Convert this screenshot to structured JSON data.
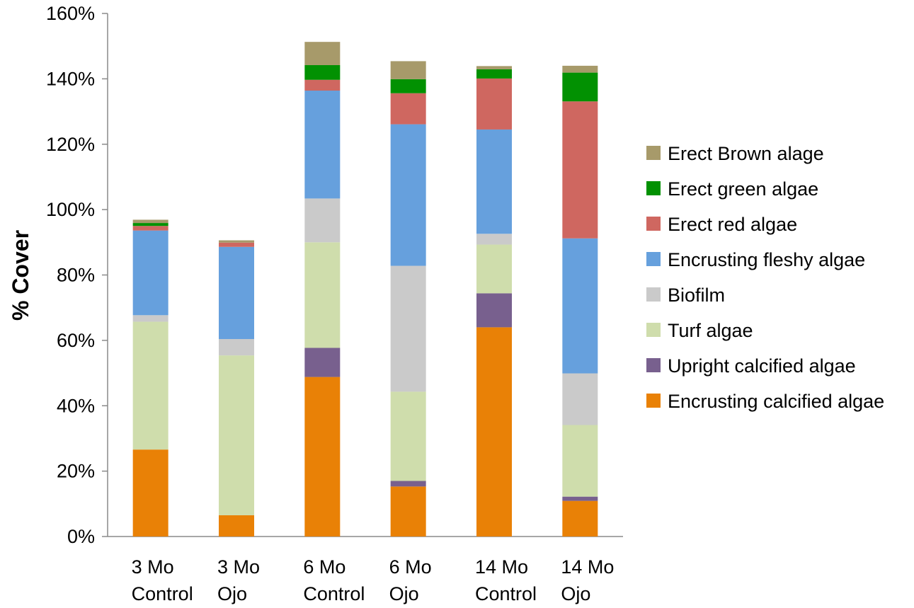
{
  "chart_data": {
    "type": "bar",
    "stacked": true,
    "ylabel": "% Cover",
    "ylim": [
      0,
      160
    ],
    "yticks": [
      "0%",
      "20%",
      "40%",
      "60%",
      "80%",
      "100%",
      "120%",
      "140%",
      "160%"
    ],
    "ytick_values": [
      0,
      20,
      40,
      60,
      80,
      100,
      120,
      140,
      160
    ],
    "grid": false,
    "legend_position": "right",
    "categories": [
      [
        "3 Mo",
        "Control"
      ],
      [
        "3 Mo",
        "Ojo"
      ],
      [
        "6 Mo",
        "Control"
      ],
      [
        "6 Mo",
        "Ojo"
      ],
      [
        "14 Mo",
        "Control"
      ],
      [
        "14 Mo",
        "Ojo"
      ]
    ],
    "series": [
      {
        "name": "Encrusting calcified algae",
        "color": "#E98106",
        "values": [
          26.6,
          6.5,
          48.8,
          15.3,
          64.0,
          10.9
        ]
      },
      {
        "name": "Upright calcified algae",
        "color": "#78608E",
        "values": [
          0,
          0,
          8.9,
          1.7,
          10.4,
          1.3
        ]
      },
      {
        "name": "Turf algae",
        "color": "#CFDDAC",
        "values": [
          39.1,
          48.9,
          32.3,
          27.3,
          14.9,
          21.9
        ]
      },
      {
        "name": "Biofilm",
        "color": "#CACACA",
        "values": [
          2.0,
          5.0,
          13.4,
          38.5,
          3.3,
          15.8
        ]
      },
      {
        "name": "Encrusting fleshy algae",
        "color": "#66A0DD",
        "values": [
          25.9,
          28.2,
          33.0,
          43.3,
          31.9,
          41.3
        ]
      },
      {
        "name": "Erect red algae",
        "color": "#CF6760",
        "values": [
          1.4,
          1.3,
          3.3,
          9.5,
          15.6,
          41.9
        ]
      },
      {
        "name": "Erect green algae",
        "color": "#029102",
        "values": [
          0.9,
          0,
          4.5,
          4.3,
          2.8,
          8.8
        ]
      },
      {
        "name": "Erect Brown alage",
        "color": "#A79A6A",
        "values": [
          1.0,
          0.7,
          7.1,
          5.5,
          1.0,
          2.1
        ]
      }
    ]
  }
}
